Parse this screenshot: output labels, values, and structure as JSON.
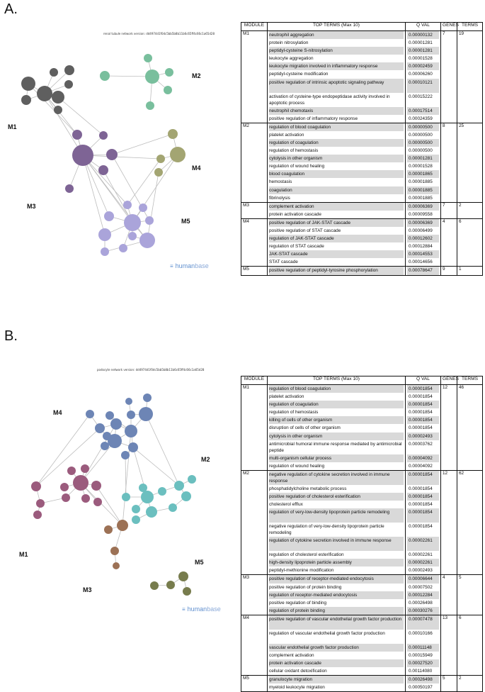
{
  "panels": [
    {
      "label": "A.",
      "network_caption": "renal tubule network version: dd4974d1f0dc5bb5b8b11b6c65ff4c66c1a65d28",
      "module_labels": [
        "M1",
        "M2",
        "M3",
        "M4",
        "M5"
      ],
      "brand": {
        "human": "human",
        "base": "base",
        "mark": "≡"
      },
      "table": {
        "headers": [
          "MODULE",
          "TOP TERMS (Max 10)",
          "Q VAL",
          "GENES",
          "TERMS"
        ],
        "rows": [
          {
            "module": "M1",
            "genes": "7",
            "terms_count": "19",
            "terms": [
              {
                "name": "neutrophil aggregation",
                "q": "0.00000132"
              },
              {
                "name": "protein nitrosylation",
                "q": "0.00001281"
              },
              {
                "name": "peptidyl-cysteine S-nitrosylation",
                "q": "0.00001281"
              },
              {
                "name": "leukocyte aggregation",
                "q": "0.00001528"
              },
              {
                "name": "leukocyte migration involved in inflammatory response",
                "q": "0.00002459"
              },
              {
                "name": "peptidyl-cysteine modification",
                "q": "0.00006260"
              },
              {
                "name": "positive regulation of intrinsic apoptotic signaling pathway",
                "q": "0.00010121"
              },
              {
                "name": "activation of cysteine-type endopeptidase activity involved in apoptotic process",
                "q": "0.00015222"
              },
              {
                "name": "neutrophil chemotaxis",
                "q": "0.00017514"
              },
              {
                "name": "positive regulation of inflammatory response",
                "q": "0.00024359"
              }
            ]
          },
          {
            "module": "M2",
            "genes": "8",
            "terms_count": "25",
            "terms": [
              {
                "name": "regulation of blood coagulation",
                "q": "0.00000500"
              },
              {
                "name": "platelet activation",
                "q": "0.00000500"
              },
              {
                "name": "regulation of coagulation",
                "q": "0.00000500"
              },
              {
                "name": "regulation of hemostasis",
                "q": "0.00000500"
              },
              {
                "name": "cytolysis in other organism",
                "q": "0.00001281"
              },
              {
                "name": "regulation of wound healing",
                "q": "0.00001528"
              },
              {
                "name": "blood coagulation",
                "q": "0.00001865"
              },
              {
                "name": "hemostasis",
                "q": "0.00001885"
              },
              {
                "name": "coagulation",
                "q": "0.00001885"
              },
              {
                "name": "fibrinolysis",
                "q": "0.00001885"
              }
            ]
          },
          {
            "module": "M3",
            "genes": "7",
            "terms_count": "2",
            "terms": [
              {
                "name": "complement activation",
                "q": "0.00006369"
              },
              {
                "name": "protein activation cascade",
                "q": "0.00009558"
              }
            ]
          },
          {
            "module": "M4",
            "genes": "4",
            "terms_count": "6",
            "terms": [
              {
                "name": "positive regulation of JAK-STAT cascade",
                "q": "0.00006369"
              },
              {
                "name": "positive regulation of STAT cascade",
                "q": "0.00006499"
              },
              {
                "name": "regulation of JAK-STAT cascade",
                "q": "0.00012602"
              },
              {
                "name": "regulation of STAT cascade",
                "q": "0.00012884"
              },
              {
                "name": "JAK-STAT cascade",
                "q": "0.00014553"
              },
              {
                "name": "STAT cascade",
                "q": "0.00014656"
              }
            ]
          },
          {
            "module": "M5",
            "genes": "9",
            "terms_count": "1",
            "terms": [
              {
                "name": "positive regulation of peptidyl-tyrosine phosphorylation",
                "q": "0.00078647"
              }
            ]
          }
        ]
      }
    },
    {
      "label": "B.",
      "network_caption": "podocyte network version: dd4974d1f0dc5bb5b8b11b6c65ff4c66c1a65d28",
      "module_labels": [
        "M4",
        "M2",
        "M1",
        "M5",
        "M3"
      ],
      "brand": {
        "human": "human",
        "base": "base",
        "mark": "≡"
      },
      "table": {
        "headers": [
          "MODULE",
          "TOP TERMS (Max 10)",
          "Q VAL",
          "GENES",
          "TERMS"
        ],
        "rows": [
          {
            "module": "M1",
            "genes": "12",
            "terms_count": "46",
            "terms": [
              {
                "name": "regulation of blood coagulation",
                "q": "0.00001854"
              },
              {
                "name": "platelet activation",
                "q": "0.00001854"
              },
              {
                "name": "regulation of coagulation",
                "q": "0.00001854"
              },
              {
                "name": "regulation of hemostasis",
                "q": "0.00001854"
              },
              {
                "name": "killing of cells of other organism",
                "q": "0.00001854"
              },
              {
                "name": "disruption of cells of other organism",
                "q": "0.00001854"
              },
              {
                "name": "cytolysis in other organism",
                "q": "0.00002493"
              },
              {
                "name": "antimicrobial humoral immune response mediated by antimicrobial peptide",
                "q": "0.00003762"
              },
              {
                "name": "multi-organism cellular process",
                "q": "0.00004092"
              },
              {
                "name": "regulation of wound healing",
                "q": "0.00004092"
              }
            ]
          },
          {
            "module": "M2",
            "genes": "12",
            "terms_count": "62",
            "terms": [
              {
                "name": "negative regulation of cytokine secretion involved in immune response",
                "q": "0.00001854"
              },
              {
                "name": "phosphatidylcholine metabolic process",
                "q": "0.00001854"
              },
              {
                "name": "positive regulation of cholesterol esterification",
                "q": "0.00001854"
              },
              {
                "name": "cholesterol efflux",
                "q": "0.00001854"
              },
              {
                "name": "regulation of very-low-density lipoprotein particle remodeling",
                "q": "0.00001854"
              },
              {
                "name": "negative regulation of very-low-density lipoprotein particle remodeling",
                "q": "0.00001854"
              },
              {
                "name": "regulation of cytokine secretion involved in immune response",
                "q": "0.00002261"
              },
              {
                "name": "regulation of cholesterol esterification",
                "q": "0.00002261"
              },
              {
                "name": "high-density lipoprotein particle assembly",
                "q": "0.00002261"
              },
              {
                "name": "peptidyl-methionine modification",
                "q": "0.00002493"
              }
            ]
          },
          {
            "module": "M3",
            "genes": "4",
            "terms_count": "5",
            "terms": [
              {
                "name": "positive regulation of receptor-mediated endocytosis",
                "q": "0.00006644"
              },
              {
                "name": "positive regulation of protein binding",
                "q": "0.00007502"
              },
              {
                "name": "regulation of receptor-mediated endocytosis",
                "q": "0.00012284"
              },
              {
                "name": "positive regulation of binding",
                "q": "0.00026498"
              },
              {
                "name": "regulation of protein binding",
                "q": "0.00030276"
              }
            ]
          },
          {
            "module": "M4",
            "genes": "13",
            "terms_count": "6",
            "terms": [
              {
                "name": "positive regulation of vascular endothelial growth factor production",
                "q": "0.00007478"
              },
              {
                "name": "regulation of vascular endothelial growth factor production",
                "q": "0.00010166"
              },
              {
                "name": "vascular endothelial growth factor production",
                "q": "0.00011148"
              },
              {
                "name": "complement activation",
                "q": "0.00015949"
              },
              {
                "name": "protein activation cascade",
                "q": "0.00027520"
              },
              {
                "name": "cellular oxidant detoxification",
                "q": "0.00114080"
              }
            ]
          },
          {
            "module": "M5",
            "genes": "5",
            "terms_count": "2",
            "terms": [
              {
                "name": "granulocyte migration",
                "q": "0.00026498"
              },
              {
                "name": "myeloid leukocyte migration",
                "q": "0.00050197"
              }
            ]
          }
        ]
      }
    }
  ],
  "colors": {
    "m1_a": "#5f5f5f",
    "m2_a": "#79bf9d",
    "m3_a": "#7e6495",
    "m4_a": "#a3a572",
    "m5_a": "#aaa4da",
    "m1_b": "#9b5b7d",
    "m2_b": "#6bbfbf",
    "m3_b": "#9c7155",
    "m4_b": "#6d85b5",
    "m5_b": "#777c4d",
    "edge": "#bdbdbd",
    "shade": "#d9d9d9"
  }
}
